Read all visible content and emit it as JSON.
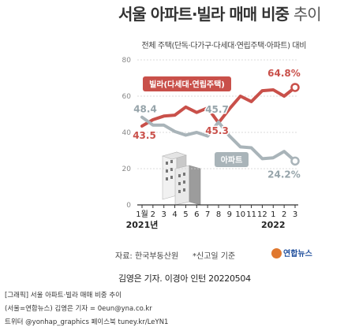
{
  "header": {
    "title_main": "서울 아파트·빌라 매매 비중",
    "title_suffix": "추이",
    "subtitle": "전체 주택(단독·다가구·다세대·연립주택·아파트) 대비"
  },
  "chart_data": {
    "type": "line",
    "title": "서울 아파트·빌라 매매 비중 추이",
    "subtitle": "전체 주택(단독·다가구·다세대·연립주택·아파트) 대비",
    "x": [
      "1월",
      "2",
      "3",
      "4",
      "5",
      "6",
      "7",
      "8",
      "9",
      "10",
      "11",
      "12",
      "1",
      "2",
      "3"
    ],
    "x_groups": [
      {
        "label": "2021년",
        "start": 0
      },
      {
        "label": "2022",
        "start": 12
      }
    ],
    "ylim": [
      0,
      80
    ],
    "yticks": [
      0,
      20,
      40,
      60,
      80
    ],
    "grid": true,
    "series": [
      {
        "name": "빌라(다세대·연립주택)",
        "color": "#c9504a",
        "values": [
          43.5,
          47.0,
          49.0,
          49.5,
          54.0,
          51.0,
          53.5,
          45.3,
          53.0,
          60.0,
          57.0,
          63.0,
          63.5,
          60.0,
          64.8
        ],
        "labels": {
          "0": "43.5",
          "7": "45.3",
          "14": "64.8%"
        }
      },
      {
        "name": "아파트",
        "color": "#a9b4b9",
        "values": [
          48.4,
          44.0,
          44.0,
          40.5,
          38.5,
          40.0,
          38.0,
          45.7,
          38.0,
          32.0,
          31.5,
          25.5,
          26.0,
          29.5,
          24.2
        ],
        "labels": {
          "0": "48.4",
          "7": "45.7",
          "14": "24.2%"
        }
      }
    ]
  },
  "footer": {
    "source": "자료: 한국부동산원",
    "note": "*신고일 기준",
    "logo": "연합뉴스"
  },
  "byline": "김영은 기자. 이경아 인턴  20220504",
  "caption": {
    "line1": "[그래픽] 서울 아파트·빌라 매매 비중 추이",
    "line2": "(서울=연합뉴스) 김영은 기자 = 0eun@yna.co.kr",
    "line3": "트위터 @yonhap_graphics 페이스북 tuney.kr/LeYN1"
  },
  "colors": {
    "villa": "#c9504a",
    "apartment": "#a9b4b9",
    "villa_label_bg": "#c9504a",
    "apartment_label_bg": "#a9b4b9",
    "background": "#ffffff"
  }
}
